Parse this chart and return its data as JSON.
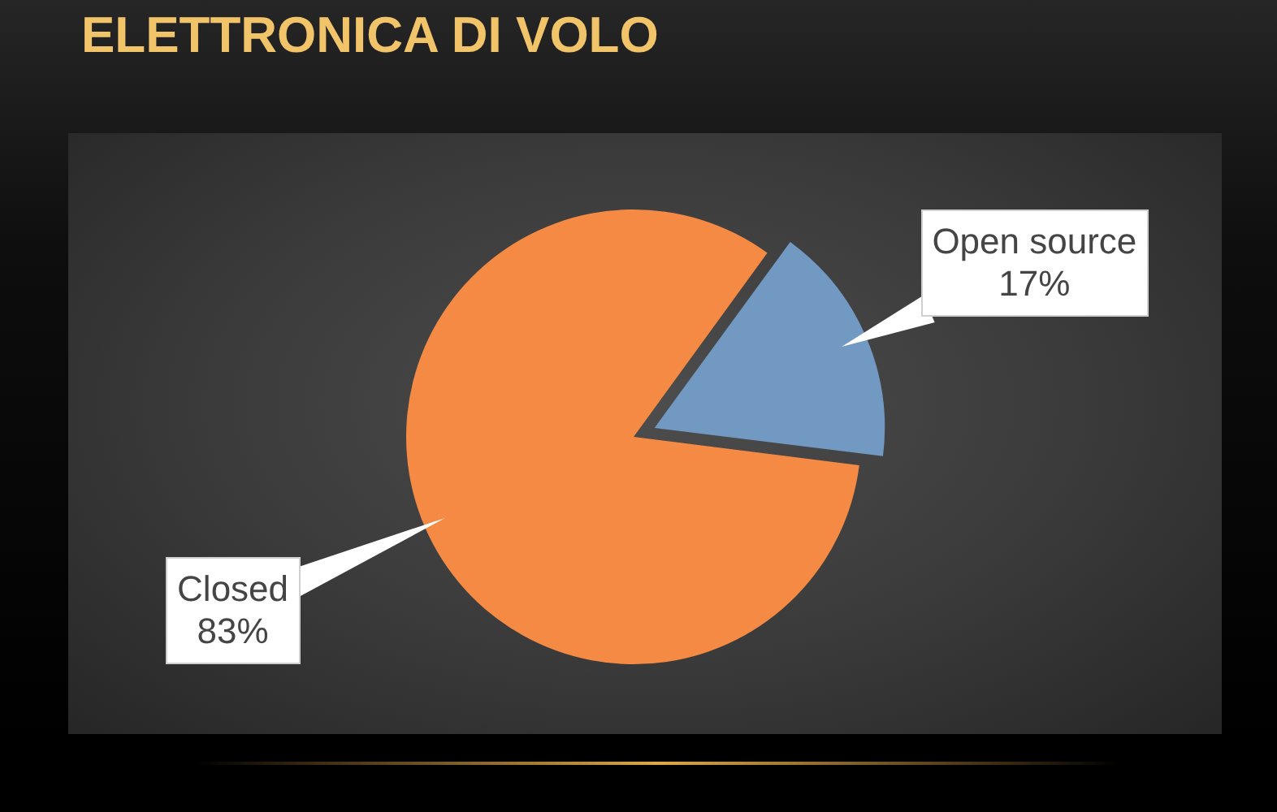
{
  "chart_data": {
    "type": "pie",
    "title": "ELETTRONICA DI VOLO",
    "categories": [
      "Open source",
      "Closed"
    ],
    "values": [
      17,
      83
    ],
    "colors": [
      "#7299c2",
      "#f58a44"
    ],
    "value_labels": [
      "17%",
      "83%"
    ]
  }
}
